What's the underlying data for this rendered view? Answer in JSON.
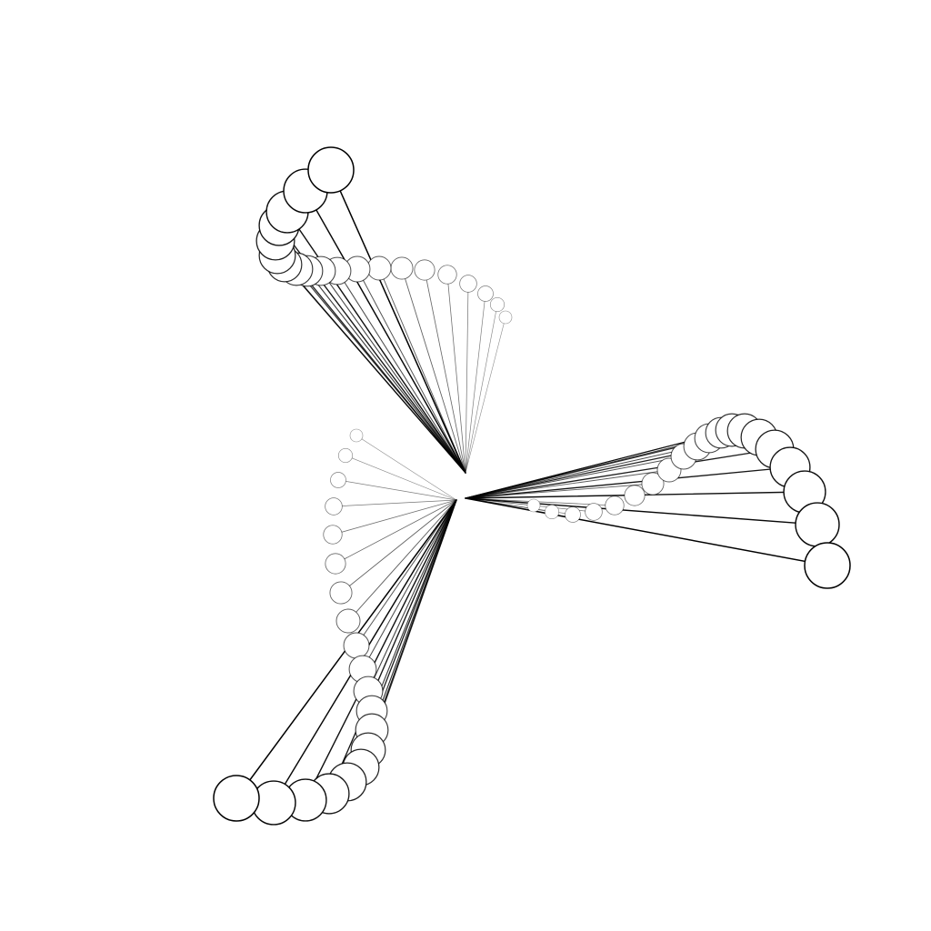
{
  "drawing": {
    "background": "#ffffff",
    "stroke_color": "#000000",
    "description_note": "",
    "arm_count": 3,
    "circles_per_arm": 20
  }
}
